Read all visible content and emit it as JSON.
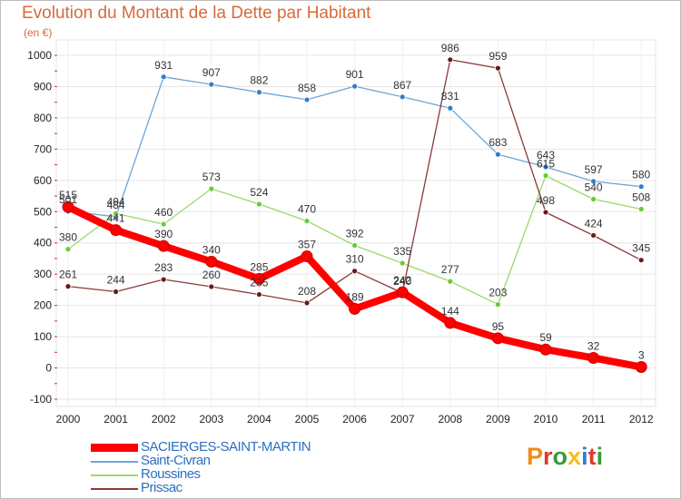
{
  "title": "Evolution du Montant de la Dette par Habitant",
  "unit": "(en €)",
  "logo": "Proxiti",
  "logo_colors": [
    "#f08a1a",
    "#e03a2a",
    "#3a9a3a",
    "#f4c020",
    "#2e7fd0",
    "#e03a2a",
    "#3a9a3a"
  ],
  "chart_data": {
    "type": "line",
    "title": "Evolution du Montant de la Dette par Habitant",
    "ylabel": "(en €)",
    "xlabel": "",
    "x": [
      "2000",
      "2001",
      "2002",
      "2003",
      "2004",
      "2005",
      "2006",
      "2007",
      "2008",
      "2009",
      "2010",
      "2011",
      "2012"
    ],
    "ylim": [
      -100,
      1000
    ],
    "yticks": [
      "-100",
      "0",
      "100",
      "200",
      "300",
      "400",
      "500",
      "600",
      "700",
      "800",
      "900",
      "1000"
    ],
    "grid": true,
    "legend_position": "bottom-left",
    "series": [
      {
        "name": "SACIERGES-SAINT-MARTIN",
        "color": "#ff0000",
        "marker_color": "#dd1111",
        "emphasis": true,
        "values": [
          515,
          441,
          390,
          340,
          285,
          357,
          189,
          242,
          144,
          95,
          59,
          32,
          3
        ],
        "labels": [
          "515",
          "441",
          "390",
          "340",
          "285",
          "357",
          "189",
          "242",
          "144",
          "95",
          "59",
          "32",
          "3"
        ]
      },
      {
        "name": "Saint-Civran",
        "color": "#6ea5d6",
        "marker_color": "#2d7fc8",
        "values": [
          501,
          484,
          931,
          907,
          882,
          858,
          901,
          867,
          831,
          683,
          643,
          597,
          580
        ],
        "labels": [
          "501",
          "484",
          "931",
          "907",
          "882",
          "858",
          "901",
          "867",
          "831",
          "683",
          "643",
          "597",
          "580"
        ]
      },
      {
        "name": "Roussines",
        "color": "#9ad86a",
        "marker_color": "#66cc33",
        "values": [
          380,
          494,
          460,
          573,
          524,
          470,
          392,
          335,
          277,
          203,
          615,
          540,
          508
        ],
        "labels": [
          "380",
          "494",
          "460",
          "573",
          "524",
          "470",
          "392",
          "335",
          "277",
          "203",
          "615",
          "540",
          "508"
        ]
      },
      {
        "name": "Prissac",
        "color": "#8a3a3a",
        "marker_color": "#6a1818",
        "values": [
          261,
          244,
          283,
          260,
          235,
          208,
          310,
          240,
          986,
          959,
          498,
          424,
          345
        ],
        "labels": [
          "261",
          "244",
          "283",
          "260",
          "235",
          "208",
          "310",
          "240",
          "986",
          "959",
          "498",
          "424",
          "345"
        ]
      }
    ]
  }
}
